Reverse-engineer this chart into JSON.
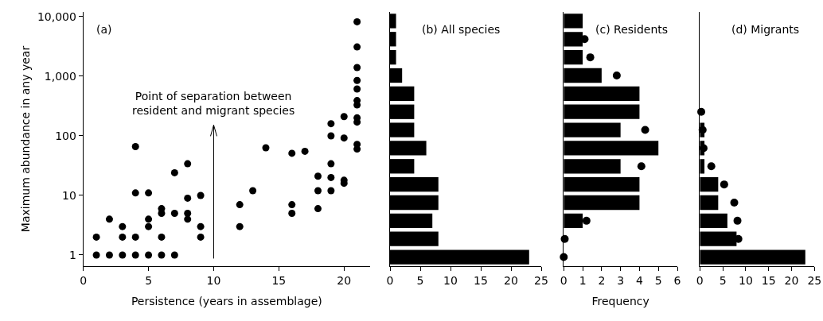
{
  "chart_data": [
    {
      "type": "scatter",
      "title": "(a)",
      "xlabel": "Persistence (years in assemblage)",
      "ylabel": "Maximum abundance in any year",
      "log": "y",
      "marker": "circle",
      "color": "#000000",
      "x": [
        1,
        2,
        3,
        4,
        5,
        6,
        7,
        1,
        2,
        3,
        3,
        4,
        4,
        4,
        5,
        5,
        5,
        6,
        6,
        6,
        7,
        7,
        8,
        8,
        8,
        8,
        9,
        9,
        9,
        12,
        12,
        13,
        14,
        16,
        16,
        16,
        17,
        18,
        18,
        18,
        19,
        19,
        19,
        19,
        19,
        20,
        20,
        20,
        20,
        21,
        21,
        21,
        21,
        21,
        21,
        21,
        21,
        21,
        21,
        21
      ],
      "values": [
        1,
        1,
        1,
        1,
        1,
        1,
        1,
        2,
        4,
        3,
        2,
        2,
        66,
        11,
        11,
        4,
        3,
        6,
        5,
        2,
        24,
        5,
        34,
        9,
        5,
        4,
        10,
        3,
        2,
        7,
        3,
        12,
        63,
        51,
        7,
        5,
        55,
        21,
        12,
        6,
        160,
        100,
        34,
        20,
        12,
        210,
        92,
        18,
        16,
        8200,
        3100,
        1400,
        850,
        610,
        390,
        330,
        200,
        170,
        72,
        60
      ],
      "xlim": [
        0,
        22
      ],
      "xticks": [
        0,
        5,
        10,
        15,
        20
      ],
      "ylim": [
        0.65,
        12000
      ],
      "yticks": [
        1,
        10,
        100,
        {
          "value": 1000,
          "label": "1,000"
        },
        {
          "value": 10000,
          "label": "10,000"
        }
      ],
      "ref_lines": [
        {
          "axis": "x",
          "value": 10,
          "label": "Point of separation between resident and migrant species"
        }
      ]
    },
    {
      "type": "bar",
      "title": "(b) All species",
      "orientation": "horizontal",
      "tick_labels": "x",
      "color": "#000000",
      "categories": [
        null,
        null,
        null,
        null,
        null,
        null,
        null,
        null,
        null,
        null,
        null,
        null,
        null,
        null
      ],
      "values": [
        1,
        1,
        1,
        2,
        4,
        4,
        4,
        6,
        4,
        8,
        8,
        7,
        8,
        23
      ],
      "xlim": [
        0,
        25
      ],
      "xticks": [
        0,
        5,
        10,
        15,
        20,
        25
      ]
    },
    {
      "type": "bar",
      "title": "(c) Residents",
      "xlabel": "Frequency",
      "orientation": "horizontal",
      "tick_labels": "x",
      "marker": "circle",
      "categories": [
        null,
        null,
        null,
        null,
        null,
        null,
        null,
        null,
        null,
        null,
        null,
        null,
        null,
        null
      ],
      "series": [
        {
          "type": "bar",
          "color": "#000000",
          "values": [
            1,
            1,
            1,
            2,
            4,
            4,
            3,
            5,
            3,
            4,
            4,
            1,
            0,
            0
          ]
        },
        {
          "type": "scatter",
          "color": "#000000",
          "values": [
            null,
            1.1,
            1.4,
            2.8,
            null,
            null,
            4.3,
            null,
            4.1,
            null,
            null,
            1.2,
            0.05,
            0
          ]
        }
      ],
      "xlim": [
        0,
        6
      ],
      "xticks": [
        0,
        1,
        2,
        3,
        4,
        5,
        6
      ]
    },
    {
      "type": "bar",
      "title": "(d) Migrants",
      "orientation": "horizontal",
      "tick_labels": "x",
      "marker": "circle",
      "categories": [
        null,
        null,
        null,
        null,
        null,
        null,
        null,
        null,
        null,
        null,
        null,
        null,
        null,
        null
      ],
      "series": [
        {
          "type": "bar",
          "color": "#000000",
          "values": [
            0,
            0,
            0,
            0,
            0,
            0,
            1,
            1,
            1,
            4,
            4,
            6,
            8,
            23
          ]
        },
        {
          "type": "scatter",
          "color": "#000000",
          "values": [
            null,
            null,
            null,
            null,
            null,
            0.3,
            0.6,
            0.8,
            2.5,
            5.3,
            7.5,
            8.2,
            8.4,
            null
          ]
        }
      ],
      "xlim": [
        0,
        25
      ],
      "xticks": [
        0,
        5,
        10,
        15,
        20,
        25
      ]
    }
  ]
}
